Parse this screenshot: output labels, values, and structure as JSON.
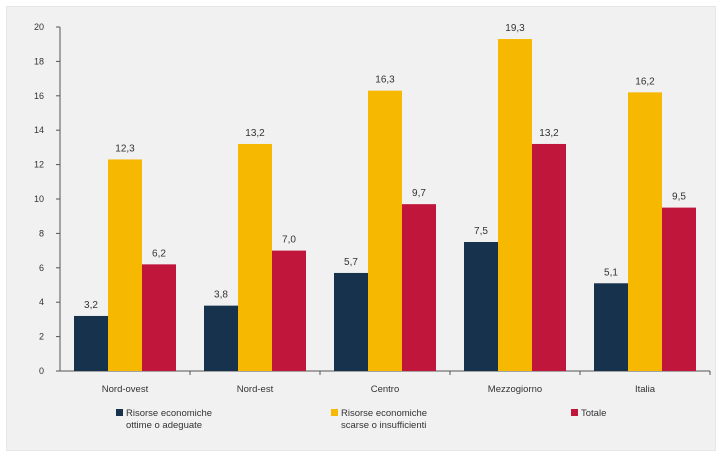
{
  "chart_data": {
    "type": "bar",
    "categories": [
      "Nord-ovest",
      "Nord-est",
      "Centro",
      "Mezzogiorno",
      "Italia"
    ],
    "series": [
      {
        "name": "Risorse economiche ottime o adeguate",
        "legend_lines": [
          "Risorse economiche",
          "ottime o adeguate"
        ],
        "color": "#17324d",
        "values": [
          3.2,
          3.8,
          5.7,
          7.5,
          5.1
        ],
        "labels": [
          "3,2",
          "3,8",
          "5,7",
          "7,5",
          "5,1"
        ]
      },
      {
        "name": "Risorse economiche scarse o insufficienti",
        "legend_lines": [
          "Risorse economiche",
          "scarse o insufficienti"
        ],
        "color": "#f6b800",
        "values": [
          12.3,
          13.2,
          16.3,
          19.3,
          16.2
        ],
        "labels": [
          "12,3",
          "13,2",
          "16,3",
          "19,3",
          "16,2"
        ]
      },
      {
        "name": "Totale",
        "legend_lines": [
          "Totale"
        ],
        "color": "#c0163c",
        "values": [
          6.2,
          7.0,
          9.7,
          13.2,
          9.5
        ],
        "labels": [
          "6,2",
          "7,0",
          "9,7",
          "13,2",
          "9,5"
        ]
      }
    ],
    "ylim": [
      0,
      20
    ],
    "yticks": [
      0,
      2,
      4,
      6,
      8,
      10,
      12,
      14,
      16,
      18,
      20
    ],
    "grid": false,
    "legend_position": "bottom"
  }
}
